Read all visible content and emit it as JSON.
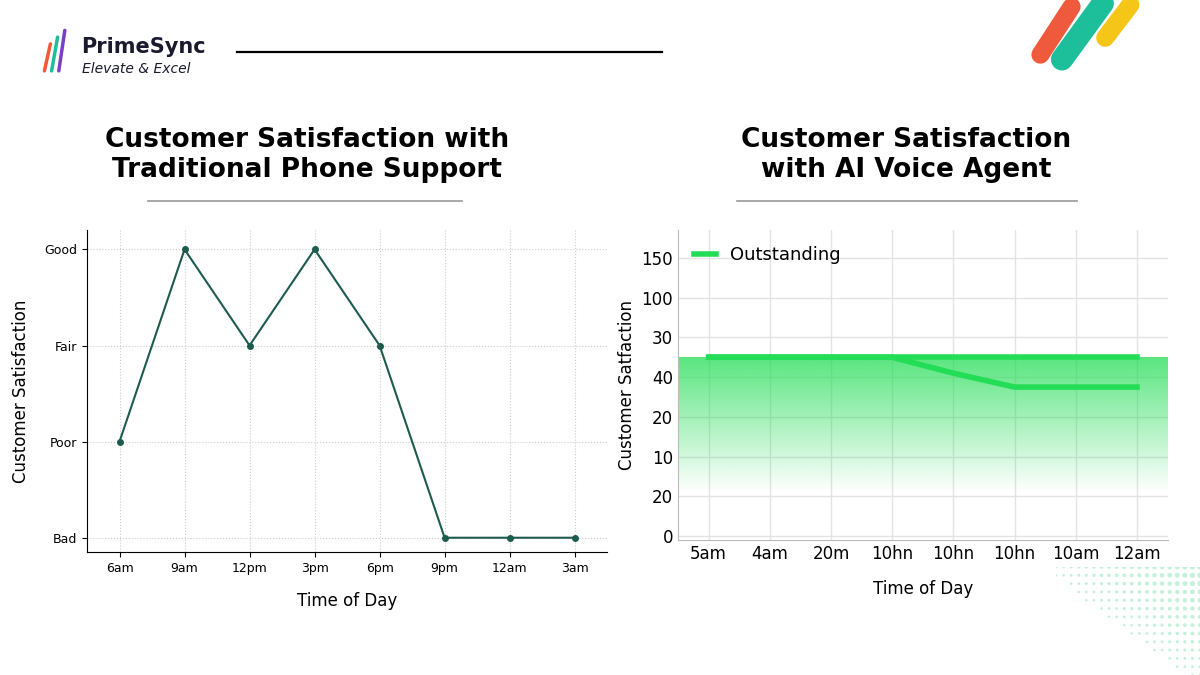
{
  "header": {
    "brand": "PrimeSync",
    "tagline": "Elevate & Excel"
  },
  "chart_data": [
    {
      "type": "line",
      "title": "Customer Satisfaction with\nTraditional Phone Support",
      "x_label": "Time of Day",
      "y_label": "Customer Satisfaction",
      "categories": [
        "6am",
        "9am",
        "12pm",
        "3pm",
        "6pm",
        "9pm",
        "12am",
        "3am"
      ],
      "y_categories": [
        "Bad",
        "Poor",
        "Fair",
        "Good"
      ],
      "ylim": [
        -0.15,
        3.2
      ],
      "values": [
        "Poor",
        "Good",
        "Fair",
        "Good",
        "Fair",
        "Bad",
        "Bad",
        "Bad"
      ],
      "color": "#1d5b4f",
      "marker": "o",
      "grid": true
    },
    {
      "type": "line",
      "title": "Customer Satisfaction\nwith AI Voice Agent",
      "x_label": "Time of Day",
      "y_label": "Customer Satfaction",
      "categories": [
        "5am",
        "4am",
        "20m",
        "10hn",
        "10hn",
        "10hn",
        "10am",
        "12am"
      ],
      "y_categories": [
        "0",
        "20",
        "10",
        "20",
        "40",
        "30",
        "100",
        "150"
      ],
      "ylim": [
        -0.1,
        7.7
      ],
      "series": [
        {
          "name": "Outstanding",
          "color": "#22dd55",
          "values": [
            4.5,
            4.5,
            4.5,
            4.5,
            4.5,
            4.5,
            4.5,
            4.5
          ]
        },
        {
          "color": "#22dd55",
          "values": [
            4.5,
            4.5,
            4.5,
            4.5,
            4.1,
            3.75,
            3.75,
            3.75
          ]
        }
      ],
      "legend": "upper left",
      "grid": true
    }
  ]
}
